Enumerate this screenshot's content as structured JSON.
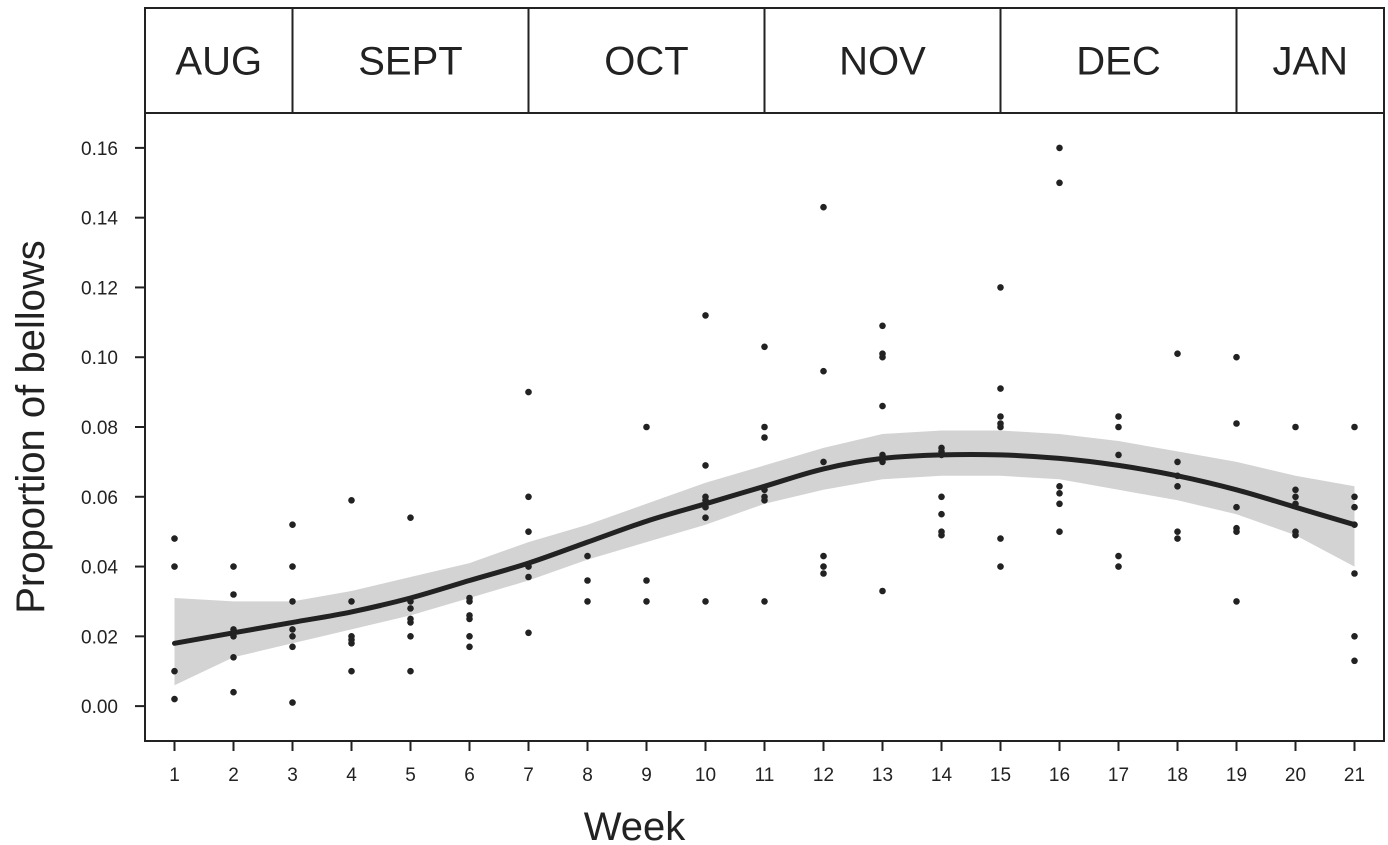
{
  "chart_data": {
    "type": "scatter",
    "xlabel": "Week",
    "ylabel": "Proportion of bellows",
    "xlim": [
      0.5,
      21.5
    ],
    "ylim": [
      -0.01,
      0.17
    ],
    "x_ticks": [
      1,
      2,
      3,
      4,
      5,
      6,
      7,
      8,
      9,
      10,
      11,
      12,
      13,
      14,
      15,
      16,
      17,
      18,
      19,
      20,
      21
    ],
    "y_ticks": [
      "0.00",
      "0.02",
      "0.04",
      "0.06",
      "0.08",
      "0.10",
      "0.12",
      "0.14",
      "0.16"
    ],
    "grid": false,
    "months": [
      {
        "label": "AUG",
        "start": 0.5,
        "end": 3
      },
      {
        "label": "SEPT",
        "start": 3,
        "end": 7
      },
      {
        "label": "OCT",
        "start": 7,
        "end": 11
      },
      {
        "label": "NOV",
        "start": 11,
        "end": 15
      },
      {
        "label": "DEC",
        "start": 15,
        "end": 19
      },
      {
        "label": "JAN",
        "start": 19,
        "end": 21.5
      }
    ],
    "points": [
      [
        1,
        0.048
      ],
      [
        1,
        0.04
      ],
      [
        1,
        0.01
      ],
      [
        1,
        0.002
      ],
      [
        2,
        0.04
      ],
      [
        2,
        0.032
      ],
      [
        2,
        0.022
      ],
      [
        2,
        0.021
      ],
      [
        2,
        0.02
      ],
      [
        2,
        0.014
      ],
      [
        2,
        0.004
      ],
      [
        3,
        0.052
      ],
      [
        3,
        0.04
      ],
      [
        3,
        0.03
      ],
      [
        3,
        0.022
      ],
      [
        3,
        0.02
      ],
      [
        3,
        0.017
      ],
      [
        3,
        0.001
      ],
      [
        4,
        0.059
      ],
      [
        4,
        0.03
      ],
      [
        4,
        0.02
      ],
      [
        4,
        0.019
      ],
      [
        4,
        0.018
      ],
      [
        4,
        0.01
      ],
      [
        5,
        0.054
      ],
      [
        5,
        0.03
      ],
      [
        5,
        0.028
      ],
      [
        5,
        0.025
      ],
      [
        5,
        0.024
      ],
      [
        5,
        0.02
      ],
      [
        5,
        0.01
      ],
      [
        6,
        0.031
      ],
      [
        6,
        0.03
      ],
      [
        6,
        0.026
      ],
      [
        6,
        0.025
      ],
      [
        6,
        0.02
      ],
      [
        6,
        0.017
      ],
      [
        7,
        0.09
      ],
      [
        7,
        0.06
      ],
      [
        7,
        0.05
      ],
      [
        7,
        0.04
      ],
      [
        7,
        0.037
      ],
      [
        7,
        0.021
      ],
      [
        8,
        0.043
      ],
      [
        8,
        0.036
      ],
      [
        8,
        0.03
      ],
      [
        9,
        0.08
      ],
      [
        9,
        0.036
      ],
      [
        9,
        0.03
      ],
      [
        10,
        0.112
      ],
      [
        10,
        0.069
      ],
      [
        10,
        0.06
      ],
      [
        10,
        0.059
      ],
      [
        10,
        0.057
      ],
      [
        10,
        0.054
      ],
      [
        10,
        0.03
      ],
      [
        11,
        0.103
      ],
      [
        11,
        0.08
      ],
      [
        11,
        0.077
      ],
      [
        11,
        0.062
      ],
      [
        11,
        0.06
      ],
      [
        11,
        0.059
      ],
      [
        11,
        0.03
      ],
      [
        12,
        0.143
      ],
      [
        12,
        0.096
      ],
      [
        12,
        0.07
      ],
      [
        12,
        0.043
      ],
      [
        12,
        0.04
      ],
      [
        12,
        0.038
      ],
      [
        13,
        0.109
      ],
      [
        13,
        0.101
      ],
      [
        13,
        0.1
      ],
      [
        13,
        0.086
      ],
      [
        13,
        0.072
      ],
      [
        13,
        0.07
      ],
      [
        13,
        0.033
      ],
      [
        14,
        0.074
      ],
      [
        14,
        0.073
      ],
      [
        14,
        0.072
      ],
      [
        14,
        0.06
      ],
      [
        14,
        0.055
      ],
      [
        14,
        0.05
      ],
      [
        14,
        0.049
      ],
      [
        15,
        0.12
      ],
      [
        15,
        0.091
      ],
      [
        15,
        0.083
      ],
      [
        15,
        0.081
      ],
      [
        15,
        0.08
      ],
      [
        15,
        0.048
      ],
      [
        15,
        0.04
      ],
      [
        16,
        0.16
      ],
      [
        16,
        0.15
      ],
      [
        16,
        0.063
      ],
      [
        16,
        0.061
      ],
      [
        16,
        0.058
      ],
      [
        16,
        0.05
      ],
      [
        17,
        0.083
      ],
      [
        17,
        0.08
      ],
      [
        17,
        0.072
      ],
      [
        17,
        0.043
      ],
      [
        17,
        0.04
      ],
      [
        18,
        0.101
      ],
      [
        18,
        0.07
      ],
      [
        18,
        0.066
      ],
      [
        18,
        0.063
      ],
      [
        18,
        0.05
      ],
      [
        18,
        0.048
      ],
      [
        19,
        0.1
      ],
      [
        19,
        0.081
      ],
      [
        19,
        0.057
      ],
      [
        19,
        0.051
      ],
      [
        19,
        0.05
      ],
      [
        19,
        0.03
      ],
      [
        20,
        0.08
      ],
      [
        20,
        0.062
      ],
      [
        20,
        0.06
      ],
      [
        20,
        0.058
      ],
      [
        20,
        0.05
      ],
      [
        20,
        0.049
      ],
      [
        21,
        0.08
      ],
      [
        21,
        0.06
      ],
      [
        21,
        0.057
      ],
      [
        21,
        0.052
      ],
      [
        21,
        0.038
      ],
      [
        21,
        0.02
      ],
      [
        21,
        0.013
      ]
    ],
    "smooth_fit": {
      "x": [
        1,
        2,
        3,
        4,
        5,
        6,
        7,
        8,
        9,
        10,
        11,
        12,
        13,
        14,
        15,
        16,
        17,
        18,
        19,
        20,
        21
      ],
      "y": [
        0.018,
        0.021,
        0.024,
        0.027,
        0.031,
        0.036,
        0.041,
        0.047,
        0.053,
        0.058,
        0.063,
        0.068,
        0.071,
        0.072,
        0.072,
        0.071,
        0.069,
        0.066,
        0.062,
        0.057,
        0.052
      ],
      "lower": [
        0.006,
        0.014,
        0.018,
        0.022,
        0.026,
        0.031,
        0.036,
        0.042,
        0.047,
        0.052,
        0.058,
        0.062,
        0.065,
        0.066,
        0.066,
        0.065,
        0.062,
        0.059,
        0.055,
        0.049,
        0.04
      ],
      "upper": [
        0.031,
        0.03,
        0.03,
        0.033,
        0.037,
        0.041,
        0.047,
        0.052,
        0.058,
        0.064,
        0.069,
        0.074,
        0.078,
        0.079,
        0.079,
        0.078,
        0.076,
        0.073,
        0.07,
        0.066,
        0.063
      ]
    },
    "colors": {
      "points": "#222222",
      "line": "#222222",
      "band": "#d3d3d3",
      "frame": "#222222"
    }
  }
}
